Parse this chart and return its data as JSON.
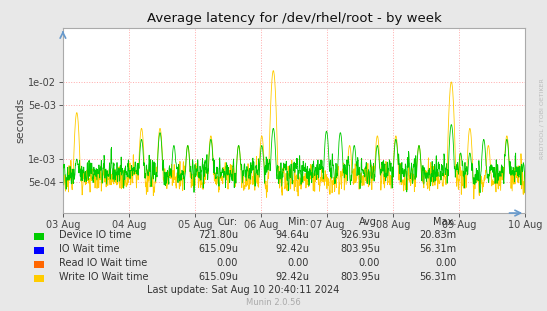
{
  "title": "Average latency for /dev/rhel/root - by week",
  "ylabel": "seconds",
  "right_label": "RRDTOOL / TOBI OETIKER",
  "watermark": "Munin 2.0.56",
  "background_color": "#e8e8e8",
  "plot_background_color": "#ffffff",
  "grid_color": "#ffaaaa",
  "x_tick_labels": [
    "03 Aug",
    "04 Aug",
    "05 Aug",
    "06 Aug",
    "07 Aug",
    "08 Aug",
    "09 Aug",
    "10 Aug"
  ],
  "ylim_min": 0.0002,
  "ylim_max": 0.05,
  "legend_items": [
    {
      "label": "Device IO time",
      "color": "#00cc00"
    },
    {
      "label": "IO Wait time",
      "color": "#0000ff"
    },
    {
      "label": "Read IO Wait time",
      "color": "#ff6600"
    },
    {
      "label": "Write IO Wait time",
      "color": "#ffcc00"
    }
  ],
  "table_headers": [
    "Cur:",
    "Min:",
    "Avg:",
    "Max:"
  ],
  "table_data": [
    [
      "721.80u",
      "94.64u",
      "926.93u",
      "20.83m"
    ],
    [
      "615.09u",
      "92.42u",
      "803.95u",
      "56.31m"
    ],
    [
      "0.00",
      "0.00",
      "0.00",
      "0.00"
    ],
    [
      "615.09u",
      "92.42u",
      "803.95u",
      "56.31m"
    ]
  ],
  "last_update": "Last update: Sat Aug 10 20:40:11 2024",
  "num_points": 2000,
  "seed": 42
}
